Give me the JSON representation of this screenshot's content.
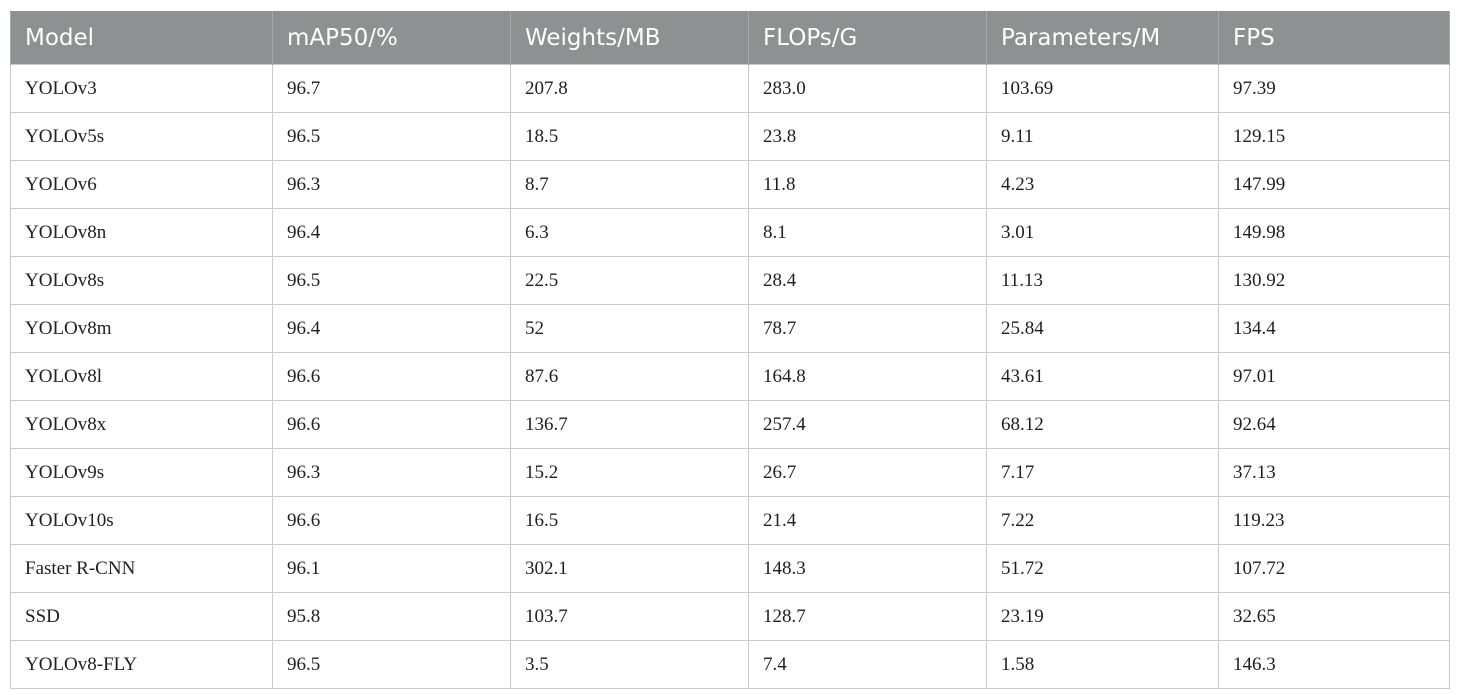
{
  "table": {
    "headers": [
      "Model",
      "mAP50/%",
      "Weights/MB",
      "FLOPs/G",
      "Parameters/M",
      "FPS"
    ],
    "rows": [
      [
        "YOLOv3",
        "96.7",
        "207.8",
        "283.0",
        "103.69",
        "97.39"
      ],
      [
        "YOLOv5s",
        "96.5",
        "18.5",
        "23.8",
        "9.11",
        "129.15"
      ],
      [
        "YOLOv6",
        "96.3",
        "8.7",
        "11.8",
        "4.23",
        "147.99"
      ],
      [
        "YOLOv8n",
        "96.4",
        "6.3",
        "8.1",
        "3.01",
        "149.98"
      ],
      [
        "YOLOv8s",
        "96.5",
        "22.5",
        "28.4",
        "11.13",
        "130.92"
      ],
      [
        "YOLOv8m",
        "96.4",
        "52",
        "78.7",
        "25.84",
        "134.4"
      ],
      [
        "YOLOv8l",
        "96.6",
        "87.6",
        "164.8",
        "43.61",
        "97.01"
      ],
      [
        "YOLOv8x",
        "96.6",
        "136.7",
        "257.4",
        "68.12",
        "92.64"
      ],
      [
        "YOLOv9s",
        "96.3",
        "15.2",
        "26.7",
        "7.17",
        "37.13"
      ],
      [
        "YOLOv10s",
        "96.6",
        "16.5",
        "21.4",
        "7.22",
        "119.23"
      ],
      [
        "Faster R-CNN",
        "96.1",
        "302.1",
        "148.3",
        "51.72",
        "107.72"
      ],
      [
        "SSD",
        "95.8",
        "103.7",
        "128.7",
        "23.19",
        "32.65"
      ],
      [
        "YOLOv8-FLY",
        "96.5",
        "3.5",
        "7.4",
        "1.58",
        "146.3"
      ]
    ],
    "colors": {
      "header_bg": "#8e9091",
      "header_text": "#ffffff",
      "grid_line": "#c9cacb"
    }
  }
}
